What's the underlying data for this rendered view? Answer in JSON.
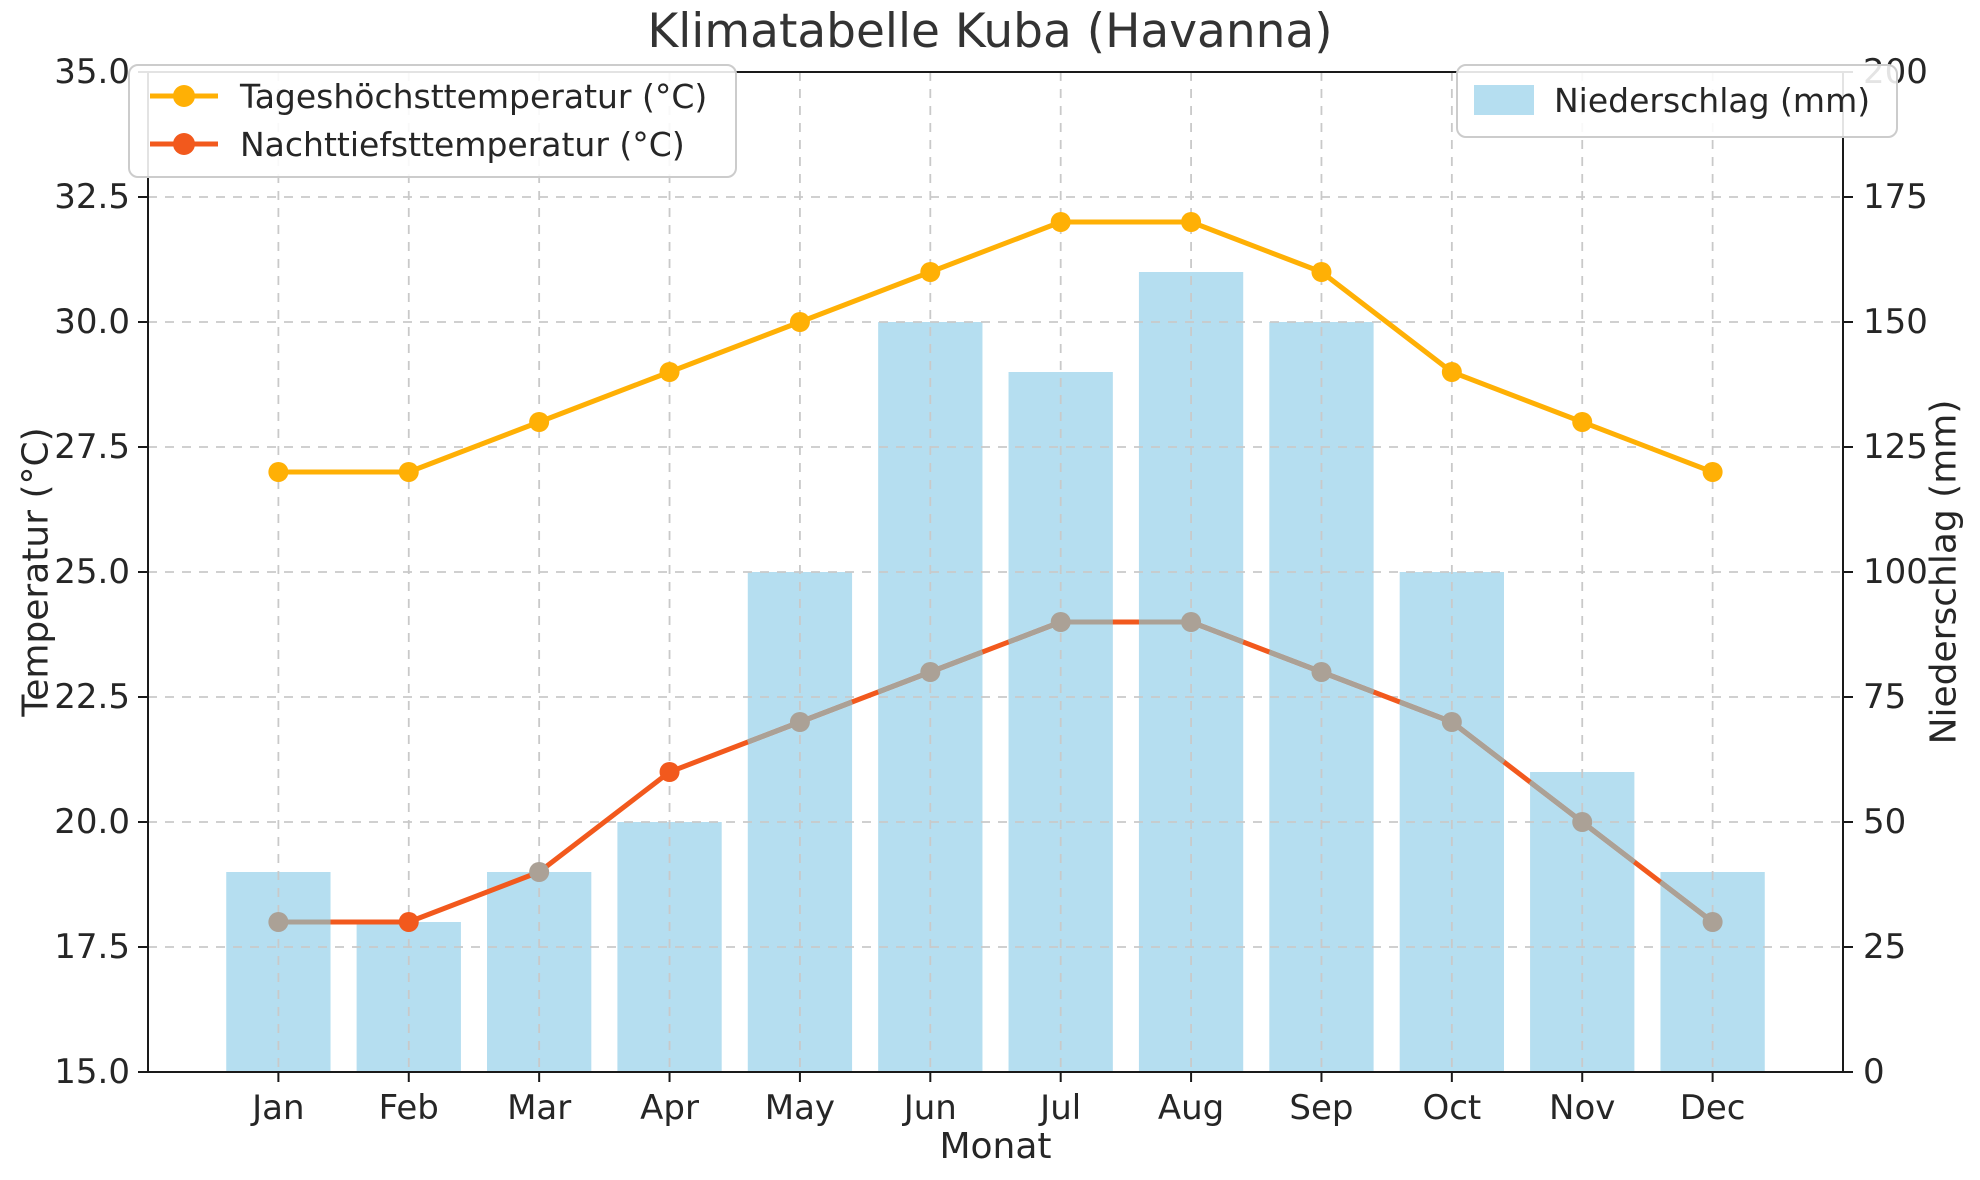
{
  "chart_data": {
    "type": "combo (bar + line, dual y-axis)",
    "title": "Klimatabelle Kuba (Havanna)",
    "xlabel": "Monat",
    "ylabel_left": "Temperatur (°C)",
    "ylabel_right": "Niederschlag (mm)",
    "categories": [
      "Jan",
      "Feb",
      "Mar",
      "Apr",
      "May",
      "Jun",
      "Jul",
      "Aug",
      "Sep",
      "Oct",
      "Nov",
      "Dec"
    ],
    "series": [
      {
        "name": "Tageshöchsttemperatur (°C)",
        "type": "line",
        "axis": "left",
        "color": "#ffb005",
        "marker": "circle",
        "values": [
          27,
          27,
          28,
          29,
          30,
          31,
          32,
          32,
          31,
          29,
          28,
          27
        ]
      },
      {
        "name": "Nachttiefsttemperatur (°C)",
        "type": "line",
        "axis": "left",
        "color": "#f2591d",
        "marker": "circle",
        "values": [
          18,
          18,
          19,
          21,
          22,
          23,
          24,
          24,
          23,
          22,
          20,
          18
        ]
      },
      {
        "name": "Niederschlag (mm)",
        "type": "bar",
        "axis": "right",
        "color": "#b5def0",
        "values": [
          40,
          30,
          40,
          50,
          100,
          150,
          140,
          160,
          150,
          100,
          60,
          40
        ]
      }
    ],
    "axis_left": {
      "min": 15,
      "max": 35,
      "tick_values": [
        35,
        32.5,
        30,
        27.5,
        25,
        22.5,
        20,
        17.5,
        15
      ],
      "tick_labels": [
        "35.0",
        "32.5",
        "30.0",
        "27.5",
        "25.0",
        "22.5",
        "20.0",
        "17.5",
        "15.0"
      ]
    },
    "axis_right": {
      "min": 0,
      "max": 200,
      "tick_values": [
        200,
        175,
        150,
        125,
        100,
        75,
        50,
        25,
        0
      ],
      "tick_labels": [
        "200",
        "175",
        "150",
        "125",
        "100",
        "75",
        "50",
        "25",
        "0"
      ]
    },
    "grid": {
      "show": true,
      "style": "dashed",
      "color": "#c9c9c9"
    },
    "legend_position": {
      "temperature_legend": "upper left",
      "precip_legend": "upper right"
    },
    "night_line_overlay": {
      "color": "#aba196",
      "segments": [
        [
          0,
          0,
          0.4
        ],
        [
          3,
          0.6,
          1
        ],
        [
          4,
          0,
          0.4
        ],
        [
          4,
          0.6,
          1
        ],
        [
          5,
          0,
          0.4
        ],
        [
          5,
          0.6,
          1
        ],
        [
          6,
          0,
          0.4
        ],
        [
          6,
          0.6,
          1
        ],
        [
          7,
          0,
          0.4
        ],
        [
          7,
          0.6,
          1
        ],
        [
          8,
          0,
          0.4
        ],
        [
          8,
          0.6,
          1
        ],
        [
          9,
          0,
          0.4
        ],
        [
          9,
          0.6,
          1
        ],
        [
          10,
          0,
          0.4
        ],
        [
          10,
          0.6,
          1
        ]
      ],
      "marker_colors": [
        "#aba196",
        "#f2591d",
        "#aba196",
        "#f2591d",
        "#aba196",
        "#aba196",
        "#aba196",
        "#aba196",
        "#aba196",
        "#aba196",
        "#aba196",
        "#aba196"
      ]
    },
    "frame_color": "#1a1a1a",
    "bar_width_fraction": 0.8
  }
}
